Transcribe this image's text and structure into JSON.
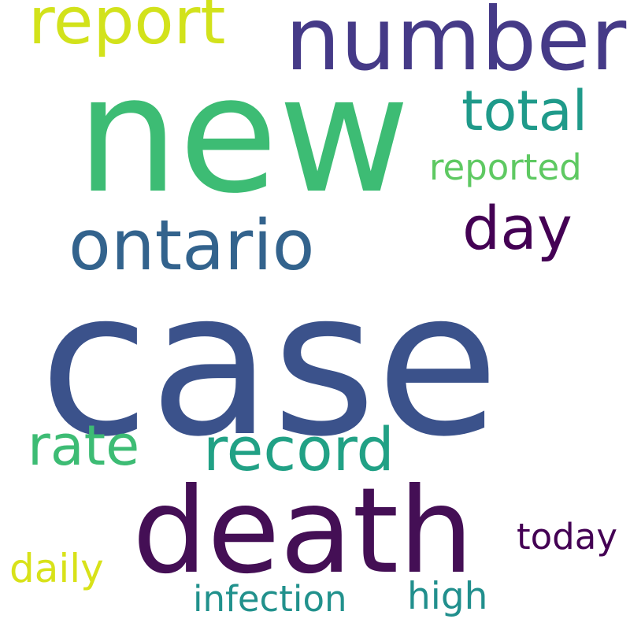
{
  "words": {
    "case": {
      "text": "case",
      "color": "#3b528b"
    },
    "new": {
      "text": "new",
      "color": "#3dbc74"
    },
    "death": {
      "text": "death",
      "color": "#440f55"
    },
    "number": {
      "text": "number",
      "color": "#453a87"
    },
    "ontario": {
      "text": "ontario",
      "color": "#33638d"
    },
    "report": {
      "text": "report",
      "color": "#d2e21b"
    },
    "record": {
      "text": "record",
      "color": "#21a185"
    },
    "day": {
      "text": "day",
      "color": "#440154"
    },
    "rate": {
      "text": "rate",
      "color": "#3dbc74"
    },
    "total": {
      "text": "total",
      "color": "#1f9a8a"
    },
    "reported": {
      "text": "reported",
      "color": "#5ec962"
    },
    "high": {
      "text": "high",
      "color": "#218f8d"
    },
    "infection": {
      "text": "infection",
      "color": "#21918c"
    },
    "daily": {
      "text": "daily",
      "color": "#d8e219"
    },
    "today": {
      "text": "today",
      "color": "#440154"
    }
  }
}
